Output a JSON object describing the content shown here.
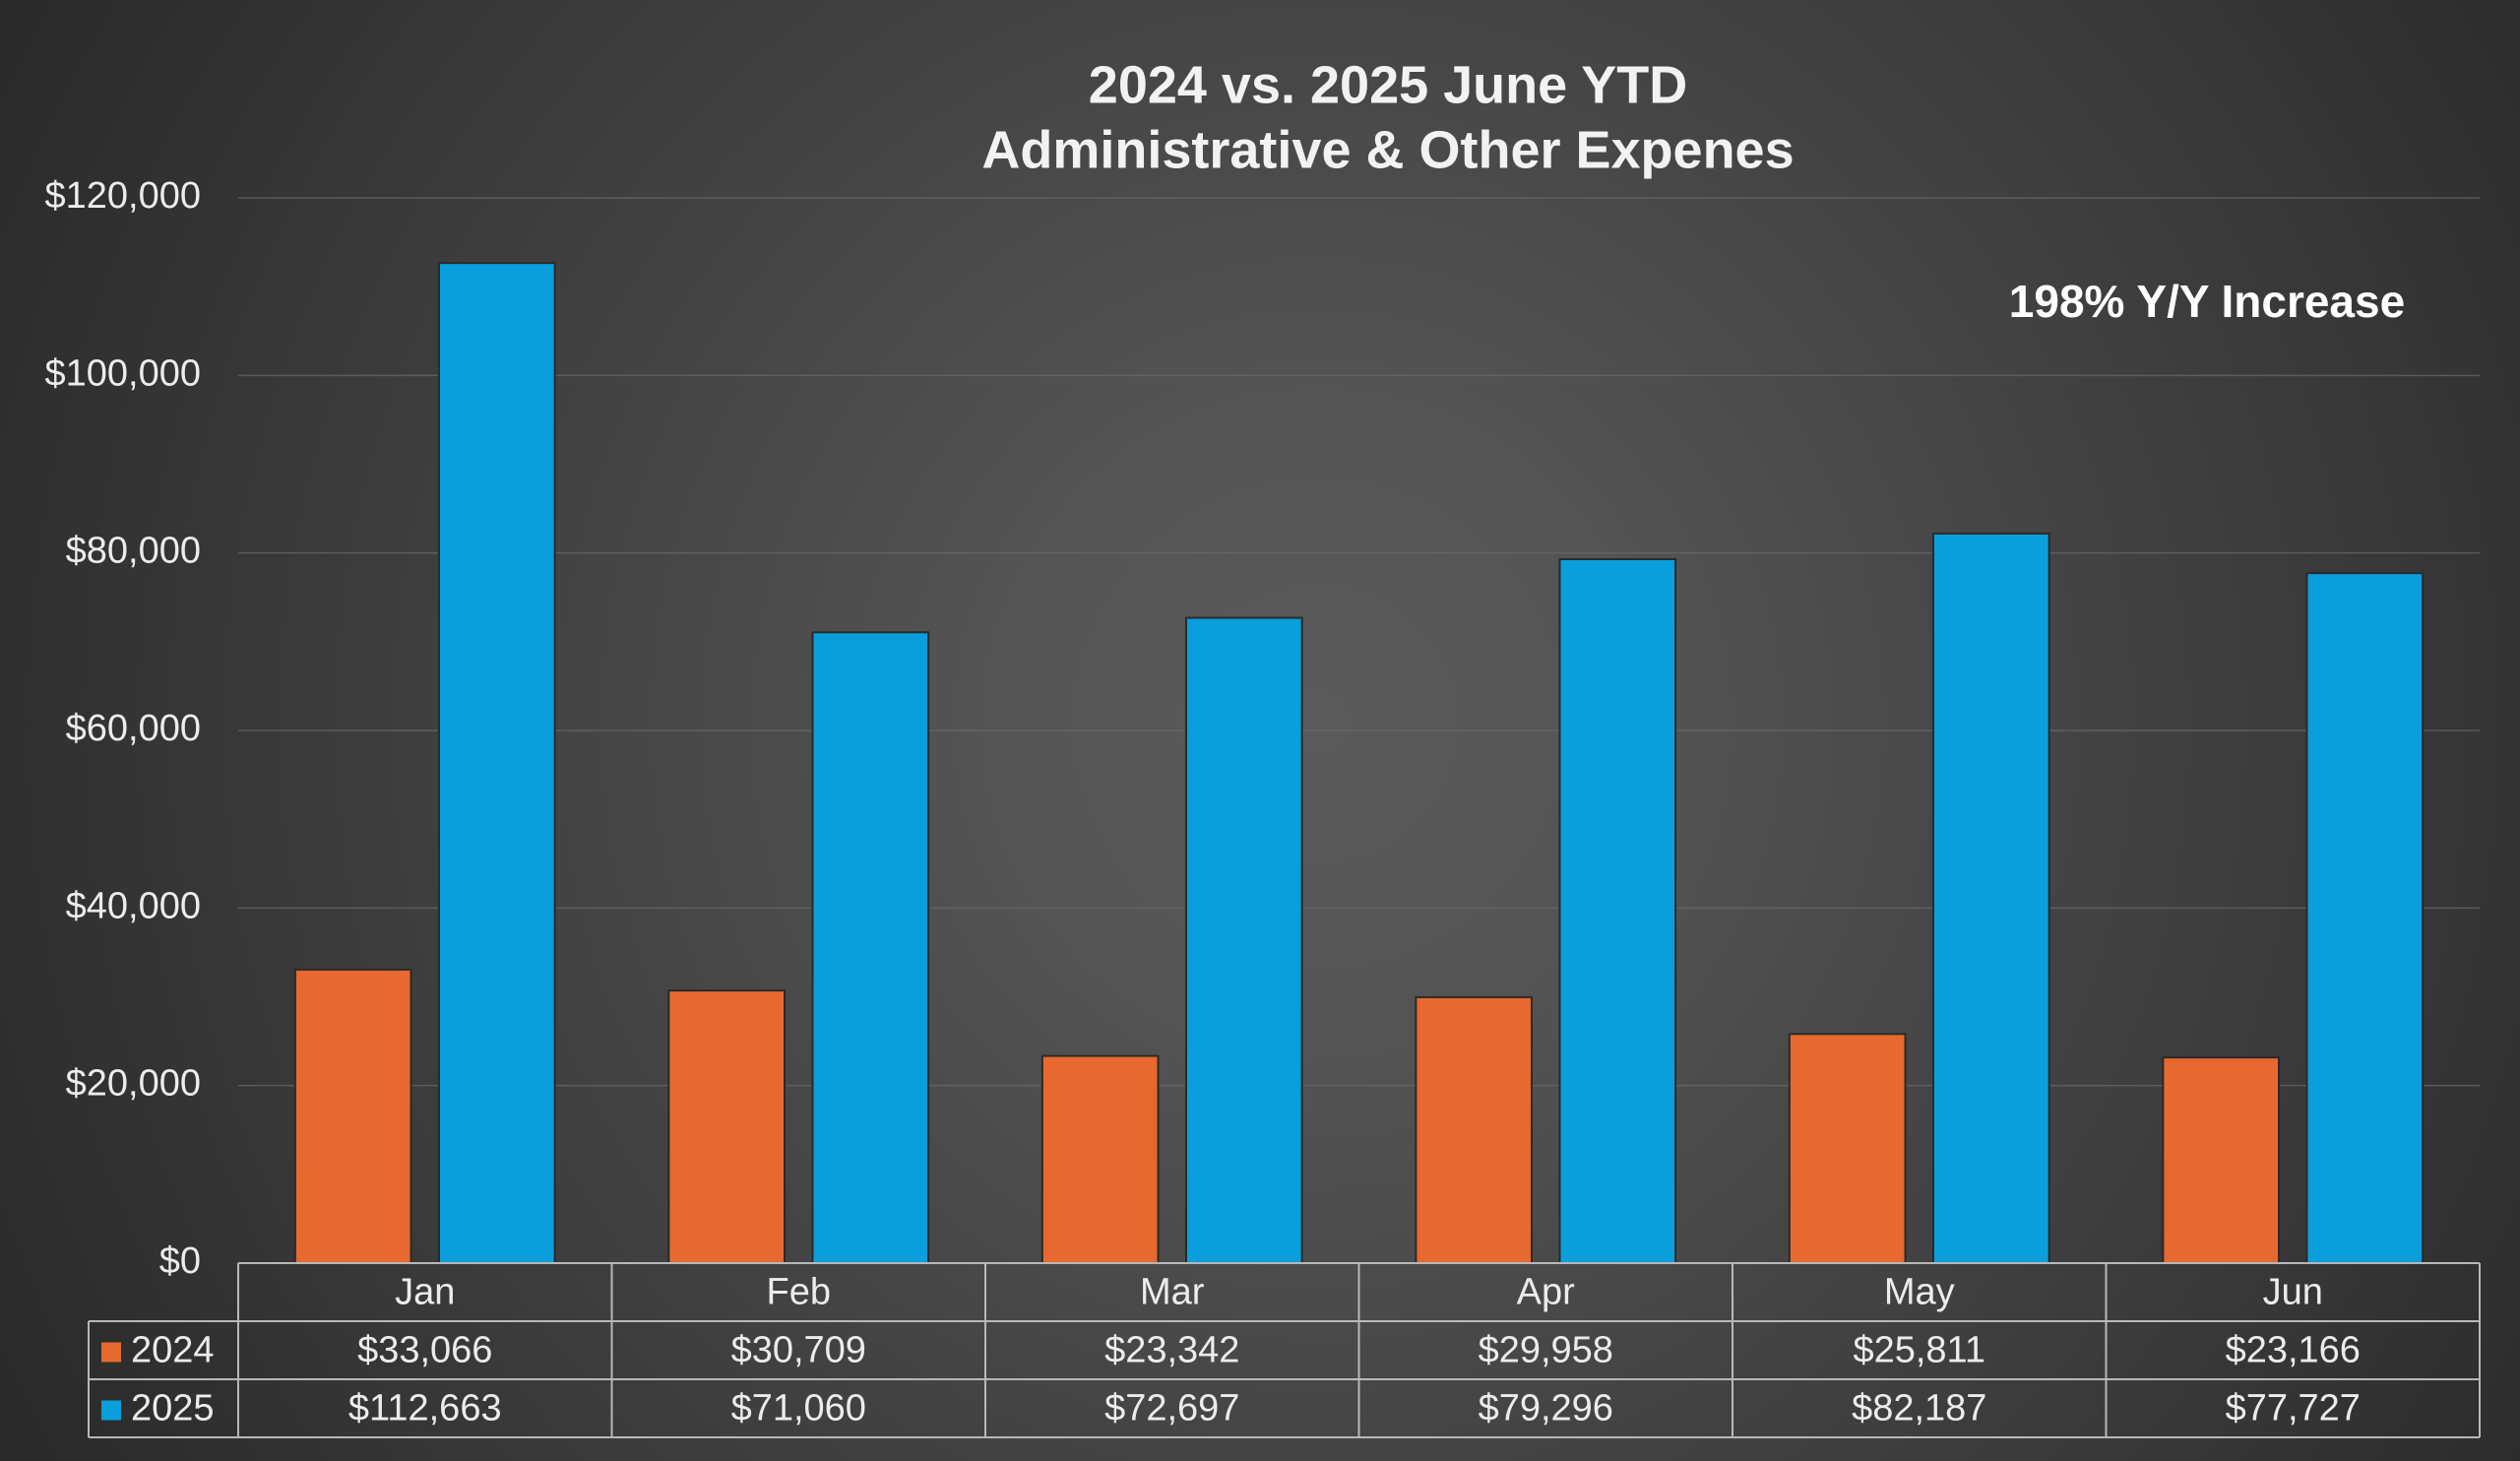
{
  "chart_data": {
    "type": "bar",
    "title": "2024 vs. 2025 June YTD",
    "subtitle": "Administrative & Other Expenes",
    "annotation": "198% Y/Y Increase",
    "categories": [
      "Jan",
      "Feb",
      "Mar",
      "Apr",
      "May",
      "Jun"
    ],
    "series": [
      {
        "name": "2024",
        "color": "#e8692f",
        "values": [
          33066,
          30709,
          23342,
          29958,
          25811,
          23166
        ],
        "value_labels": [
          "$33,066",
          "$30,709",
          "$23,342",
          "$29,958",
          "$25,811",
          "$23,166"
        ]
      },
      {
        "name": "2025",
        "color": "#0a9fdc",
        "values": [
          112663,
          71060,
          72697,
          79296,
          82187,
          77727
        ],
        "value_labels": [
          "$112,663",
          "$71,060",
          "$72,697",
          "$79,296",
          "$82,187",
          "$77,727"
        ]
      }
    ],
    "ylim": [
      0,
      120000
    ],
    "yticks": [
      {
        "value": 0,
        "label": "$0"
      },
      {
        "value": 20000,
        "label": "$20,000"
      },
      {
        "value": 40000,
        "label": "$40,000"
      },
      {
        "value": 60000,
        "label": "$60,000"
      },
      {
        "value": 80000,
        "label": "$80,000"
      },
      {
        "value": 100000,
        "label": "$100,000"
      },
      {
        "value": 120000,
        "label": "$120,000"
      }
    ],
    "grid": true,
    "data_table": true
  }
}
